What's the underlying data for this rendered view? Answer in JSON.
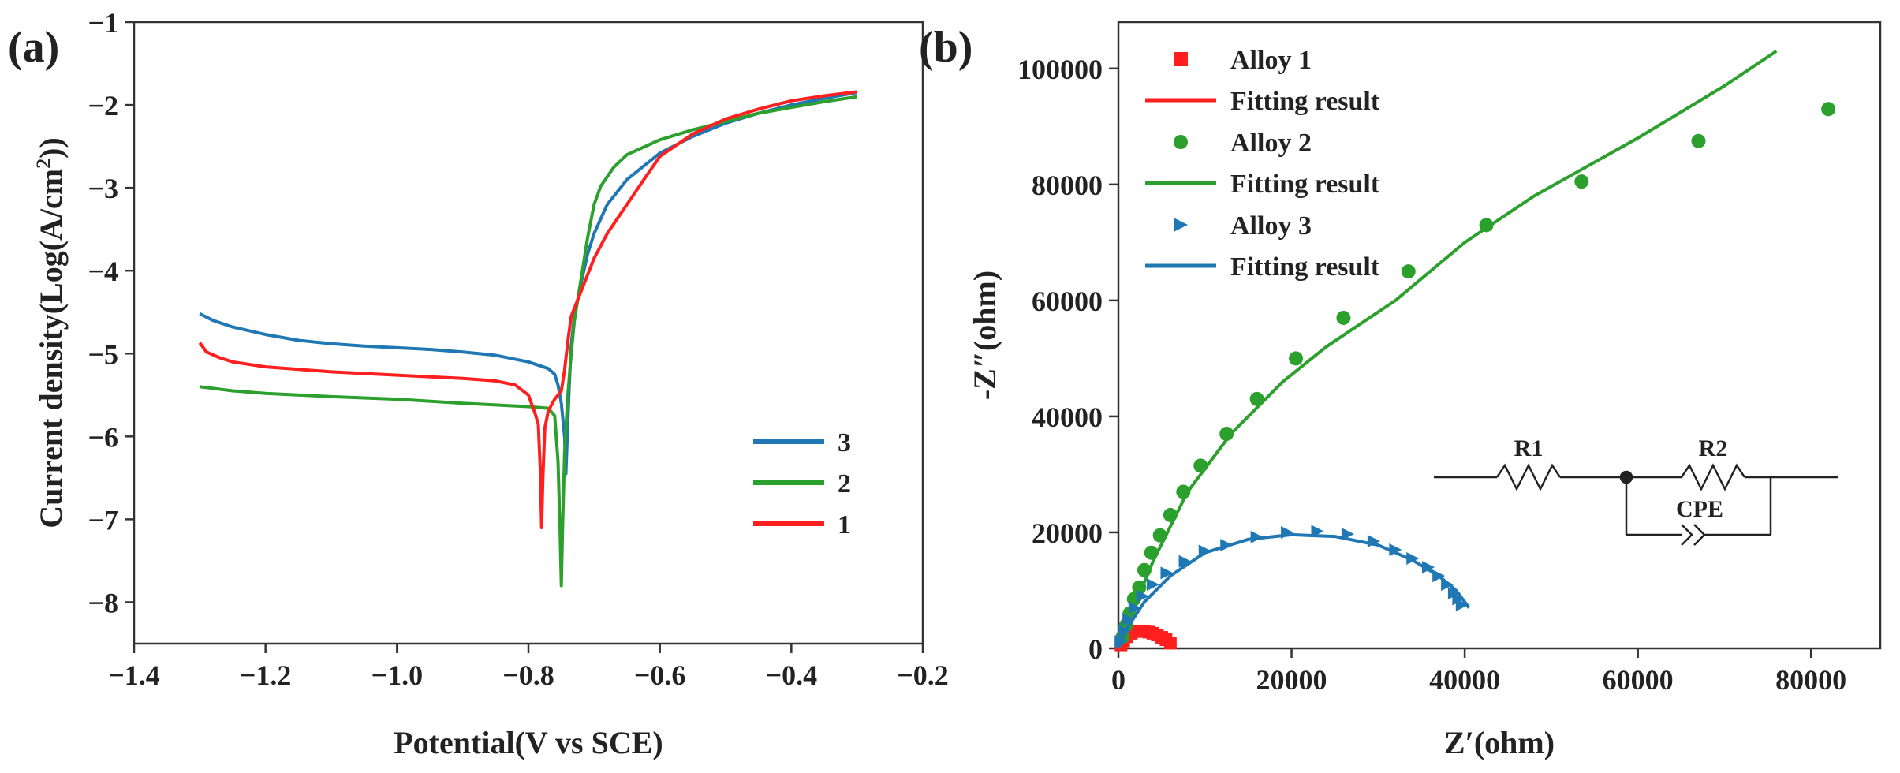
{
  "chart_data": [
    {
      "panel_label": "(a)",
      "type": "line",
      "xlabel": "Potential(V vs SCE)",
      "ylabel": "Current density(Log(A/cm2))",
      "xlim": [
        -1.4,
        -0.2
      ],
      "ylim": [
        -8.5,
        -1
      ],
      "xticks": [
        -1.4,
        -1.2,
        -1.0,
        -0.8,
        -0.6,
        -0.4,
        -0.2
      ],
      "xtick_labels": [
        "−1.4",
        "−1.2",
        "−1.0",
        "−0.8",
        "−0.6",
        "−0.4",
        "−0.2"
      ],
      "yticks": [
        -8,
        -7,
        -6,
        -5,
        -4,
        -3,
        -2,
        -1
      ],
      "ytick_labels": [
        "−8",
        "−7",
        "−6",
        "−5",
        "−4",
        "−3",
        "−2",
        "−1"
      ],
      "grid": false,
      "legend_position": "right",
      "series": [
        {
          "name": "3",
          "color": "#1f77b4",
          "points": [
            [
              -1.3,
              -4.52
            ],
            [
              -1.28,
              -4.6
            ],
            [
              -1.25,
              -4.68
            ],
            [
              -1.2,
              -4.77
            ],
            [
              -1.15,
              -4.84
            ],
            [
              -1.1,
              -4.88
            ],
            [
              -1.05,
              -4.91
            ],
            [
              -1.0,
              -4.93
            ],
            [
              -0.95,
              -4.95
            ],
            [
              -0.9,
              -4.98
            ],
            [
              -0.85,
              -5.02
            ],
            [
              -0.8,
              -5.1
            ],
            [
              -0.77,
              -5.18
            ],
            [
              -0.76,
              -5.25
            ],
            [
              -0.755,
              -5.38
            ],
            [
              -0.75,
              -5.6
            ],
            [
              -0.745,
              -6.0
            ],
            [
              -0.743,
              -6.45
            ],
            [
              -0.741,
              -6.0
            ],
            [
              -0.738,
              -5.4
            ],
            [
              -0.735,
              -4.9
            ],
            [
              -0.73,
              -4.55
            ],
            [
              -0.72,
              -4.15
            ],
            [
              -0.71,
              -3.8
            ],
            [
              -0.7,
              -3.55
            ],
            [
              -0.68,
              -3.2
            ],
            [
              -0.65,
              -2.9
            ],
            [
              -0.6,
              -2.58
            ],
            [
              -0.55,
              -2.38
            ],
            [
              -0.5,
              -2.22
            ],
            [
              -0.45,
              -2.1
            ],
            [
              -0.4,
              -2.0
            ],
            [
              -0.35,
              -1.92
            ],
            [
              -0.3,
              -1.85
            ]
          ]
        },
        {
          "name": "2",
          "color": "#2ca02c",
          "points": [
            [
              -1.3,
              -5.4
            ],
            [
              -1.25,
              -5.45
            ],
            [
              -1.2,
              -5.48
            ],
            [
              -1.1,
              -5.52
            ],
            [
              -1.0,
              -5.55
            ],
            [
              -0.9,
              -5.6
            ],
            [
              -0.8,
              -5.64
            ],
            [
              -0.77,
              -5.66
            ],
            [
              -0.76,
              -5.75
            ],
            [
              -0.755,
              -6.3
            ],
            [
              -0.752,
              -7.1
            ],
            [
              -0.75,
              -7.8
            ],
            [
              -0.748,
              -7.1
            ],
            [
              -0.745,
              -6.2
            ],
            [
              -0.74,
              -5.5
            ],
            [
              -0.735,
              -5.0
            ],
            [
              -0.73,
              -4.6
            ],
            [
              -0.72,
              -4.1
            ],
            [
              -0.71,
              -3.6
            ],
            [
              -0.7,
              -3.2
            ],
            [
              -0.69,
              -2.98
            ],
            [
              -0.67,
              -2.75
            ],
            [
              -0.65,
              -2.6
            ],
            [
              -0.6,
              -2.42
            ],
            [
              -0.55,
              -2.3
            ],
            [
              -0.5,
              -2.2
            ],
            [
              -0.45,
              -2.1
            ],
            [
              -0.4,
              -2.03
            ],
            [
              -0.35,
              -1.96
            ],
            [
              -0.3,
              -1.9
            ]
          ]
        },
        {
          "name": "1",
          "color": "#ff1f1f",
          "points": [
            [
              -1.3,
              -4.87
            ],
            [
              -1.29,
              -4.98
            ],
            [
              -1.27,
              -5.05
            ],
            [
              -1.25,
              -5.1
            ],
            [
              -1.2,
              -5.16
            ],
            [
              -1.1,
              -5.22
            ],
            [
              -1.0,
              -5.26
            ],
            [
              -0.9,
              -5.3
            ],
            [
              -0.85,
              -5.33
            ],
            [
              -0.82,
              -5.38
            ],
            [
              -0.8,
              -5.5
            ],
            [
              -0.79,
              -5.72
            ],
            [
              -0.785,
              -5.85
            ],
            [
              -0.782,
              -6.4
            ],
            [
              -0.78,
              -7.1
            ],
            [
              -0.778,
              -6.5
            ],
            [
              -0.775,
              -5.9
            ],
            [
              -0.77,
              -5.7
            ],
            [
              -0.765,
              -5.62
            ],
            [
              -0.76,
              -5.55
            ],
            [
              -0.75,
              -5.45
            ],
            [
              -0.745,
              -5.2
            ],
            [
              -0.74,
              -4.85
            ],
            [
              -0.735,
              -4.55
            ],
            [
              -0.725,
              -4.35
            ],
            [
              -0.715,
              -4.15
            ],
            [
              -0.7,
              -3.85
            ],
            [
              -0.68,
              -3.55
            ],
            [
              -0.65,
              -3.2
            ],
            [
              -0.62,
              -2.85
            ],
            [
              -0.6,
              -2.62
            ],
            [
              -0.55,
              -2.35
            ],
            [
              -0.5,
              -2.17
            ],
            [
              -0.45,
              -2.05
            ],
            [
              -0.4,
              -1.95
            ],
            [
              -0.35,
              -1.89
            ],
            [
              -0.3,
              -1.84
            ]
          ]
        }
      ]
    },
    {
      "panel_label": "(b)",
      "type": "scatter",
      "xlabel": "Z′(ohm)",
      "ylabel": "-Z″(ohm)",
      "xlim": [
        0,
        88000
      ],
      "ylim": [
        0,
        108000
      ],
      "xticks": [
        0,
        20000,
        40000,
        60000,
        80000
      ],
      "xtick_labels": [
        "0",
        "20000",
        "40000",
        "60000",
        "80000"
      ],
      "yticks": [
        0,
        20000,
        40000,
        60000,
        80000,
        100000
      ],
      "ytick_labels": [
        "0",
        "20000",
        "40000",
        "60000",
        "80000",
        "100000"
      ],
      "grid": false,
      "legend_position": "top-left",
      "circuit": {
        "r1_label": "R1",
        "r2_label": "R2",
        "cpe_label": "CPE"
      },
      "series": [
        {
          "name": "Alloy 1",
          "fit_name": "Fitting result",
          "color": "#ff1f1f",
          "marker": "square",
          "points": [
            [
              300,
              600
            ],
            [
              600,
              1300
            ],
            [
              1000,
              2000
            ],
            [
              1500,
              2600
            ],
            [
              2000,
              2900
            ],
            [
              2500,
              3000
            ],
            [
              3000,
              2950
            ],
            [
              3500,
              2800
            ],
            [
              4000,
              2600
            ],
            [
              4500,
              2300
            ],
            [
              5000,
              1900
            ],
            [
              5500,
              1500
            ],
            [
              6000,
              900
            ]
          ],
          "fit": [
            [
              200,
              400
            ],
            [
              800,
              1800
            ],
            [
              1600,
              2750
            ],
            [
              2500,
              3000
            ],
            [
              3500,
              2820
            ],
            [
              4500,
              2300
            ],
            [
              5500,
              1500
            ],
            [
              6100,
              800
            ]
          ]
        },
        {
          "name": "Alloy 2",
          "fit_name": "Fitting result",
          "color": "#2ca02c",
          "marker": "circle",
          "points": [
            [
              500,
              2000
            ],
            [
              900,
              4000
            ],
            [
              1300,
              6000
            ],
            [
              1800,
              8500
            ],
            [
              2400,
              10500
            ],
            [
              3000,
              13500
            ],
            [
              3800,
              16500
            ],
            [
              4800,
              19500
            ],
            [
              6000,
              23000
            ],
            [
              7500,
              27000
            ],
            [
              9500,
              31500
            ],
            [
              12500,
              37000
            ],
            [
              16000,
              43000
            ],
            [
              20500,
              50000
            ],
            [
              26000,
              57000
            ],
            [
              33500,
              65000
            ],
            [
              42500,
              73000
            ],
            [
              53500,
              80500
            ],
            [
              67000,
              87500
            ],
            [
              82000,
              93000
            ]
          ],
          "fit": [
            [
              0,
              0
            ],
            [
              1500,
              6000
            ],
            [
              4000,
              15000
            ],
            [
              8000,
              27000
            ],
            [
              13000,
              37000
            ],
            [
              19000,
              46000
            ],
            [
              24000,
              52000
            ],
            [
              32000,
              60000
            ],
            [
              40000,
              70000
            ],
            [
              48000,
              78000
            ],
            [
              60000,
              88000
            ],
            [
              70000,
              97000
            ],
            [
              76000,
              103000
            ]
          ]
        },
        {
          "name": "Alloy 3",
          "fit_name": "Fitting result",
          "color": "#1f77b4",
          "marker": "triangle-right",
          "points": [
            [
              300,
              1200
            ],
            [
              700,
              3000
            ],
            [
              1200,
              5000
            ],
            [
              1900,
              7000
            ],
            [
              2800,
              9000
            ],
            [
              4000,
              11000
            ],
            [
              5600,
              13000
            ],
            [
              7700,
              15000
            ],
            [
              10000,
              16800
            ],
            [
              12500,
              17800
            ],
            [
              16000,
              19200
            ],
            [
              19500,
              20000
            ],
            [
              23000,
              20200
            ],
            [
              26500,
              19700
            ],
            [
              29500,
              18500
            ],
            [
              32000,
              17000
            ],
            [
              34000,
              15500
            ],
            [
              35800,
              14000
            ],
            [
              37000,
              12500
            ],
            [
              38000,
              11000
            ],
            [
              38800,
              9500
            ],
            [
              39300,
              8500
            ],
            [
              39700,
              7500
            ]
          ],
          "fit": [
            [
              0,
              0
            ],
            [
              1000,
              3500
            ],
            [
              3000,
              8000
            ],
            [
              6000,
              12500
            ],
            [
              10000,
              16500
            ],
            [
              15000,
              18800
            ],
            [
              20000,
              19600
            ],
            [
              25000,
              19300
            ],
            [
              30000,
              17800
            ],
            [
              34000,
              15200
            ],
            [
              37000,
              12500
            ],
            [
              39000,
              10000
            ],
            [
              40500,
              7000
            ]
          ]
        }
      ]
    }
  ]
}
